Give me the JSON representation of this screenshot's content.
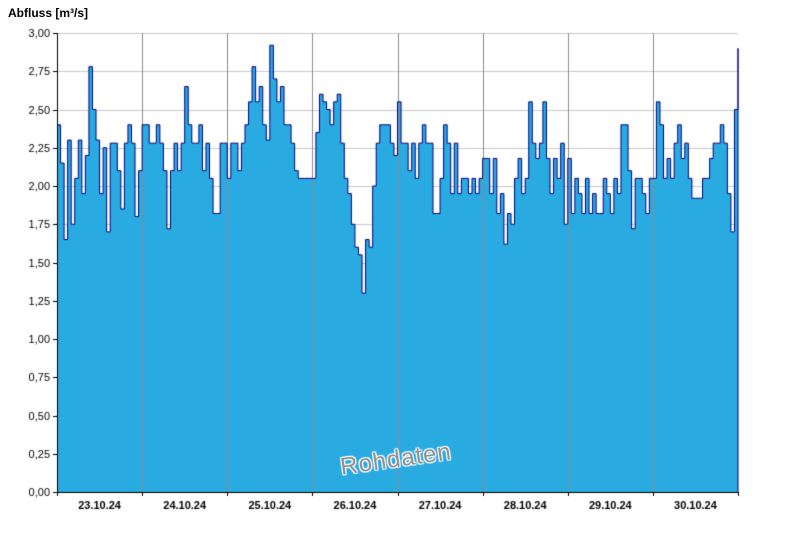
{
  "chart_data": {
    "type": "area",
    "title": "Abfluss [m³/s]",
    "watermark": "Rohdaten",
    "x_tick_labels": [
      "23.10.24",
      "24.10.24",
      "25.10.24",
      "26.10.24",
      "27.10.24",
      "28.10.24",
      "29.10.24",
      "30.10.24"
    ],
    "y_tick_labels": [
      "0,00",
      "0,25",
      "0,50",
      "0,75",
      "1,00",
      "1,25",
      "1,50",
      "1,75",
      "2,00",
      "2,25",
      "2,50",
      "2,75",
      "3,00"
    ],
    "ylim": [
      0,
      3
    ],
    "y_step": 0.25,
    "days": 8,
    "grid": true,
    "legend": "none",
    "colors": {
      "fill": "#29ABE2",
      "line": "#000080",
      "grid": "#c8c8c8",
      "day_line": "#8c8c8c",
      "axis": "#000000",
      "label": "#000000"
    },
    "values": [
      2.4,
      2.15,
      1.65,
      2.3,
      1.75,
      2.05,
      2.3,
      1.95,
      2.2,
      2.78,
      2.5,
      2.3,
      1.95,
      2.25,
      1.7,
      2.28,
      2.28,
      2.1,
      1.85,
      2.28,
      2.4,
      2.28,
      1.8,
      2.1,
      2.4,
      2.4,
      2.28,
      2.28,
      2.4,
      2.28,
      2.1,
      1.72,
      2.1,
      2.28,
      2.1,
      2.28,
      2.65,
      2.4,
      2.28,
      2.28,
      2.4,
      2.1,
      2.28,
      2.05,
      1.82,
      1.82,
      2.28,
      2.28,
      2.05,
      2.28,
      2.28,
      2.1,
      2.28,
      2.4,
      2.55,
      2.78,
      2.55,
      2.65,
      2.4,
      2.3,
      2.92,
      2.7,
      2.55,
      2.65,
      2.4,
      2.4,
      2.28,
      2.1,
      2.05,
      2.05,
      2.05,
      2.05,
      2.05,
      2.35,
      2.6,
      2.55,
      2.5,
      2.4,
      2.55,
      2.6,
      2.28,
      2.05,
      1.95,
      1.75,
      1.6,
      1.55,
      1.3,
      1.65,
      1.6,
      2.0,
      2.28,
      2.4,
      2.4,
      2.4,
      2.28,
      2.2,
      2.55,
      2.28,
      2.28,
      2.1,
      2.28,
      2.05,
      2.28,
      2.4,
      2.28,
      2.28,
      1.82,
      1.82,
      2.05,
      2.4,
      2.28,
      1.95,
      2.28,
      1.95,
      2.05,
      2.05,
      1.95,
      2.05,
      1.95,
      2.05,
      2.18,
      2.18,
      1.95,
      2.18,
      1.82,
      1.95,
      1.62,
      1.82,
      1.75,
      2.05,
      2.18,
      1.95,
      2.05,
      2.55,
      2.28,
      2.18,
      2.28,
      2.55,
      2.18,
      1.95,
      2.18,
      2.05,
      2.28,
      1.75,
      2.18,
      1.82,
      2.05,
      1.95,
      1.82,
      2.05,
      1.82,
      1.95,
      1.82,
      1.82,
      2.05,
      1.95,
      1.82,
      2.05,
      1.95,
      2.4,
      2.4,
      2.1,
      1.72,
      2.05,
      2.05,
      1.95,
      1.82,
      2.05,
      2.05,
      2.55,
      2.4,
      2.05,
      2.18,
      2.05,
      2.28,
      2.4,
      2.18,
      2.28,
      2.05,
      1.92,
      1.92,
      1.92,
      2.05,
      2.05,
      2.18,
      2.28,
      2.28,
      2.4,
      2.28,
      1.95,
      1.7,
      2.5,
      2.9
    ]
  }
}
